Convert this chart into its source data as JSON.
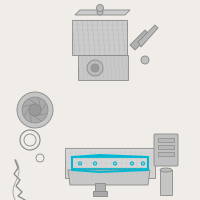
{
  "background_color": "#f0ede8",
  "title": "",
  "fig_width": 2.0,
  "fig_height": 2.0,
  "dpi": 100,
  "components": {
    "highlight_color": "#00b8d4",
    "highlight_linewidth": 1.2,
    "part_color": "#888888",
    "part_linewidth": 0.6,
    "hatch_color": "#aaaaaa",
    "shadow_color": "#999999"
  }
}
